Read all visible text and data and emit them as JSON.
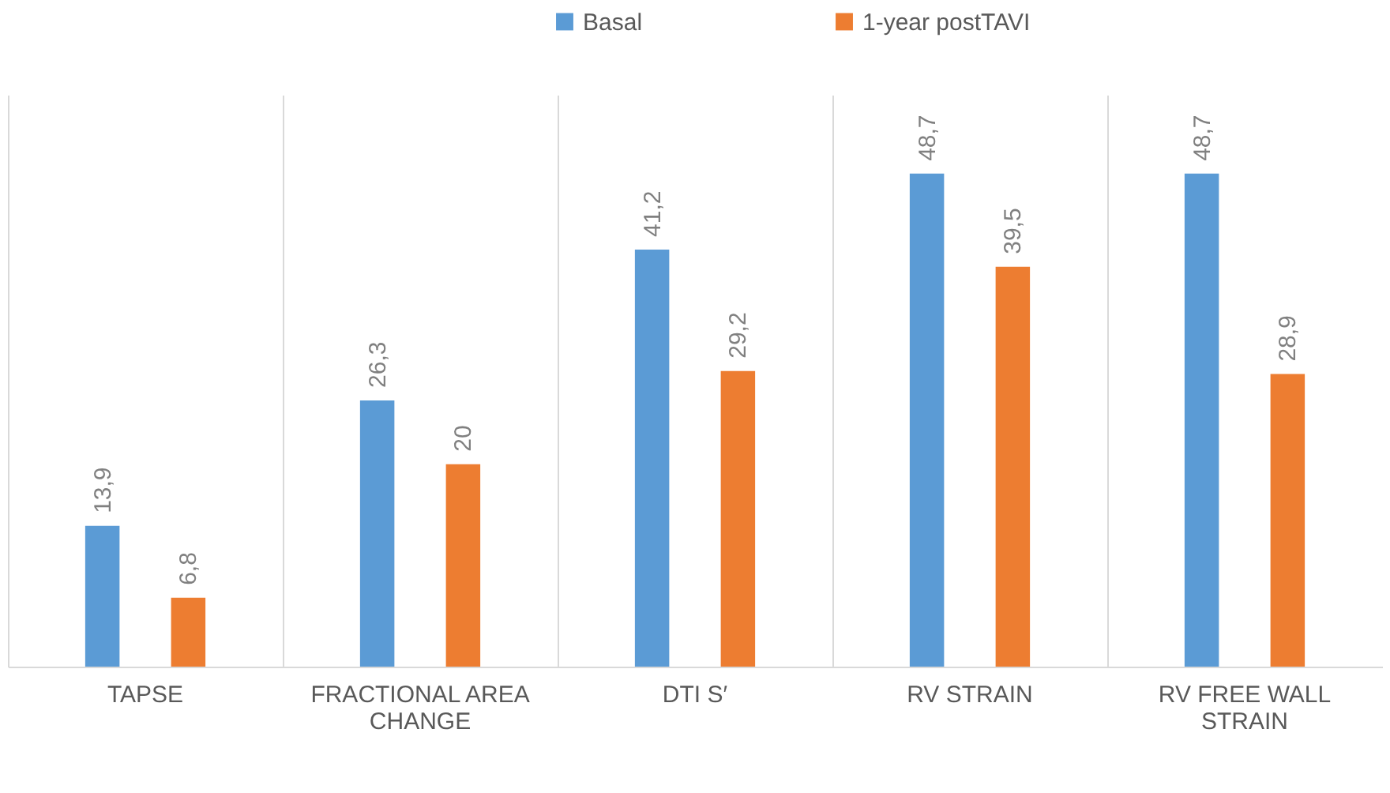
{
  "chart_data": {
    "type": "bar",
    "categories": [
      "TAPSE",
      "FRACTIONAL AREA CHANGE",
      "DTI S′",
      "RV STRAIN",
      "RV FREE WALL STRAIN"
    ],
    "series": [
      {
        "name": "Basal",
        "color": "#5b9bd5",
        "values": [
          13.9,
          26.3,
          41.2,
          48.7,
          48.7
        ],
        "value_labels": [
          "13,9",
          "26,3",
          "41,2",
          "48,7",
          "48,7"
        ]
      },
      {
        "name": "1-year postTAVI",
        "color": "#ed7d31",
        "values": [
          6.8,
          20,
          29.2,
          39.5,
          28.9
        ],
        "value_labels": [
          "6,8",
          "20",
          "29,2",
          "39,5",
          "28,9"
        ]
      }
    ],
    "grid": "x",
    "legend": "top"
  }
}
